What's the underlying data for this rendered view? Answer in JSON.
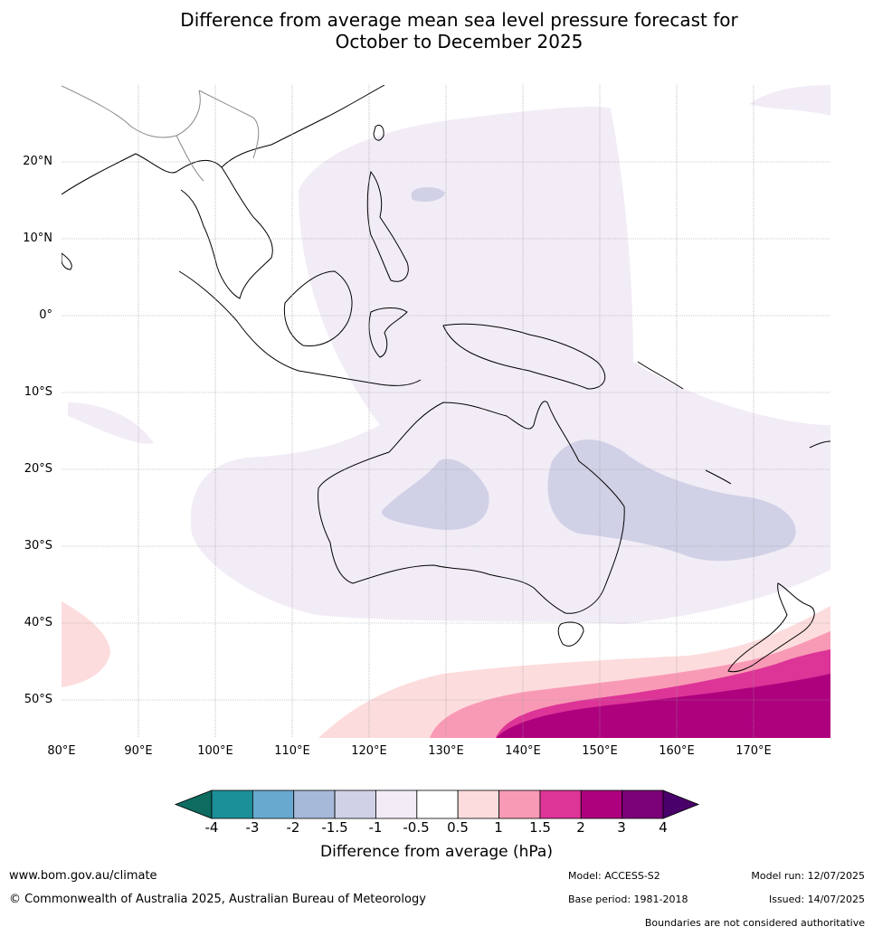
{
  "title": {
    "line1": "Difference from average mean sea level pressure forecast for",
    "line2": "October to December 2025"
  },
  "map": {
    "lat_labels": [
      "20°N",
      "10°N",
      "0°",
      "10°S",
      "20°S",
      "30°S",
      "40°S",
      "50°S"
    ],
    "lon_labels": [
      "80°E",
      "90°E",
      "100°E",
      "110°E",
      "120°E",
      "130°E",
      "140°E",
      "150°E",
      "160°E",
      "170°E"
    ],
    "extent": {
      "lon_min": 80,
      "lon_max": 180,
      "lat_min": -55,
      "lat_max": 30
    }
  },
  "colorbar": {
    "title": "Difference from average (hPa)",
    "ticks": [
      "-4",
      "-3",
      "-2",
      "-1.5",
      "-1",
      "-0.5",
      "0.5",
      "1",
      "1.5",
      "2",
      "3",
      "4"
    ],
    "colors": [
      "#0d6b60",
      "#1c9098",
      "#68a9cf",
      "#a6b9d8",
      "#d0d1e6",
      "#f2ecf6",
      "#ffffff",
      "#fddcdd",
      "#f89ab5",
      "#dd3497",
      "#ae017e",
      "#7a0177",
      "#49006a"
    ]
  },
  "footer": {
    "website": "www.bom.gov.au/climate",
    "copyright": "© Commonwealth of Australia 2025, Australian Bureau of Meteorology",
    "model": "Model: ACCESS-S2",
    "base_period": "Base period: 1981-2018",
    "model_run": "Model run: 12/07/2025",
    "issued": "Issued: 14/07/2025",
    "disclaimer": "Boundaries are not considered authoritative"
  }
}
